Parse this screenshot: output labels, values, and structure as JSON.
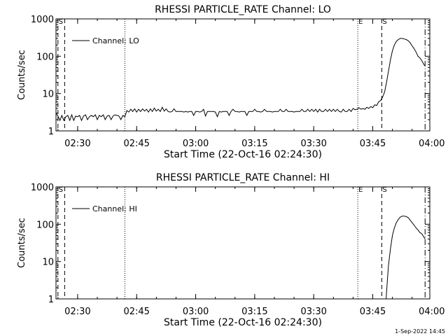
{
  "footer_timestamp": "1-Sep-2022 14:45",
  "chart_data": [
    {
      "type": "line",
      "title": "RHESSI PARTICLE_RATE Channel: LO",
      "xlabel": "Start Time (22-Oct-16 02:24:30)",
      "ylabel": "Counts/sec",
      "x_unit": "minutes after 02:24:30",
      "xlim": [
        0,
        95
      ],
      "ylim": [
        1,
        1000
      ],
      "yscale": "log",
      "x_ticks": [
        {
          "t": 5.5,
          "label": "02:30"
        },
        {
          "t": 20.5,
          "label": "02:45"
        },
        {
          "t": 35.5,
          "label": "03:00"
        },
        {
          "t": 50.5,
          "label": "03:15"
        },
        {
          "t": 65.5,
          "label": "03:30"
        },
        {
          "t": 80.5,
          "label": "03:45"
        },
        {
          "t": 95.5,
          "label": "04:00"
        }
      ],
      "y_ticks": [
        {
          "v": 1,
          "label": "1"
        },
        {
          "v": 10,
          "label": "10"
        },
        {
          "v": 100,
          "label": "100"
        },
        {
          "v": 1000,
          "label": "1000"
        }
      ],
      "legend": {
        "label": "Channel: LO",
        "position": "top-left"
      },
      "markers": [
        {
          "t": 0.5,
          "style": "dashed",
          "label": "S"
        },
        {
          "t": 2.2,
          "style": "dashed",
          "label": ""
        },
        {
          "t": 17.5,
          "style": "dotted",
          "label": ""
        },
        {
          "t": 76.7,
          "style": "dotted",
          "label": "E"
        },
        {
          "t": 82.8,
          "style": "dashed",
          "label": "S"
        },
        {
          "t": 93.8,
          "style": "dashdot",
          "label": ""
        }
      ],
      "series": [
        {
          "name": "Channel: LO",
          "points": [
            [
              0,
              3
            ],
            [
              0.5,
              2.5
            ],
            [
              1,
              1.9
            ],
            [
              1.5,
              2.6
            ],
            [
              2,
              1.9
            ],
            [
              2.5,
              2.4
            ],
            [
              3,
              2.6
            ],
            [
              3.5,
              1.9
            ],
            [
              4,
              2.7
            ],
            [
              4.5,
              1.9
            ],
            [
              5,
              2.5
            ],
            [
              5.5,
              2.4
            ],
            [
              6,
              2.6
            ],
            [
              6.5,
              1.9
            ],
            [
              7,
              2.5
            ],
            [
              7.5,
              2.7
            ],
            [
              8,
              2
            ],
            [
              8.5,
              2.4
            ],
            [
              9,
              2.6
            ],
            [
              9.5,
              2.4
            ],
            [
              10,
              2.7
            ],
            [
              10.5,
              2
            ],
            [
              11,
              2.6
            ],
            [
              11.5,
              2.4
            ],
            [
              12,
              2.7
            ],
            [
              12.5,
              2
            ],
            [
              13,
              2.5
            ],
            [
              13.5,
              2.6
            ],
            [
              14,
              2
            ],
            [
              14.5,
              2.5
            ],
            [
              15,
              2.7
            ],
            [
              15.5,
              2.6
            ],
            [
              16,
              2.5
            ],
            [
              16.5,
              2
            ],
            [
              17,
              2.6
            ],
            [
              17.5,
              2.4
            ],
            [
              18,
              3.5
            ],
            [
              18.5,
              3.2
            ],
            [
              19,
              3.8
            ],
            [
              19.5,
              3.3
            ],
            [
              20,
              3.9
            ],
            [
              20.5,
              3.2
            ],
            [
              21,
              3.8
            ],
            [
              21.5,
              3.3
            ],
            [
              22,
              3.9
            ],
            [
              22.5,
              3.4
            ],
            [
              23,
              3.8
            ],
            [
              23.5,
              3.2
            ],
            [
              24,
              3.9
            ],
            [
              24.5,
              3.3
            ],
            [
              25,
              4.1
            ],
            [
              25.5,
              3.4
            ],
            [
              26,
              3.8
            ],
            [
              26.5,
              3.3
            ],
            [
              27,
              4.3
            ],
            [
              27.5,
              3.4
            ],
            [
              28,
              3.9
            ],
            [
              28.5,
              3.3
            ],
            [
              29,
              3.2
            ],
            [
              29.5,
              3.3
            ],
            [
              30,
              3.9
            ],
            [
              30.5,
              3.3
            ],
            [
              31,
              3.3
            ],
            [
              31.5,
              3.3
            ],
            [
              32,
              3.3
            ],
            [
              32.5,
              3.2
            ],
            [
              33,
              3.3
            ],
            [
              33.5,
              3.2
            ],
            [
              34,
              3.3
            ],
            [
              34.5,
              3.3
            ],
            [
              35,
              2.6
            ],
            [
              35.5,
              3.3
            ],
            [
              36,
              3.3
            ],
            [
              36.5,
              3.2
            ],
            [
              37,
              3.3
            ],
            [
              37.5,
              3.8
            ],
            [
              38,
              2.5
            ],
            [
              38.5,
              3.3
            ],
            [
              39,
              3.3
            ],
            [
              39.5,
              3.3
            ],
            [
              40,
              3.3
            ],
            [
              40.5,
              3.2
            ],
            [
              41,
              2.4
            ],
            [
              41.5,
              3.3
            ],
            [
              42,
              3.2
            ],
            [
              42.5,
              3.3
            ],
            [
              43,
              3.3
            ],
            [
              43.5,
              3.3
            ],
            [
              44,
              2.6
            ],
            [
              44.5,
              3.3
            ],
            [
              45,
              3.8
            ],
            [
              45.5,
              3.3
            ],
            [
              46,
              3.3
            ],
            [
              46.5,
              3.2
            ],
            [
              47,
              3.3
            ],
            [
              47.5,
              3.3
            ],
            [
              48,
              3.3
            ],
            [
              48.5,
              2.6
            ],
            [
              49,
              3.3
            ],
            [
              49.5,
              3.3
            ],
            [
              50,
              3.3
            ],
            [
              50.5,
              3.8
            ],
            [
              51,
              3.3
            ],
            [
              51.5,
              3.3
            ],
            [
              52,
              3.2
            ],
            [
              52.5,
              3.3
            ],
            [
              53,
              3.8
            ],
            [
              53.5,
              3.3
            ],
            [
              54,
              3.3
            ],
            [
              54.5,
              3.3
            ],
            [
              55,
              3.2
            ],
            [
              55.5,
              3.3
            ],
            [
              56,
              3.3
            ],
            [
              56.5,
              3.3
            ],
            [
              57,
              3.8
            ],
            [
              57.5,
              3.3
            ],
            [
              58,
              3.3
            ],
            [
              58.5,
              3.8
            ],
            [
              59,
              3.3
            ],
            [
              59.5,
              3.3
            ],
            [
              60,
              3.3
            ],
            [
              60.5,
              3.2
            ],
            [
              61,
              3.3
            ],
            [
              61.5,
              3.3
            ],
            [
              62,
              3.3
            ],
            [
              62.5,
              3.8
            ],
            [
              63,
              3.3
            ],
            [
              63.5,
              3.3
            ],
            [
              64,
              3.8
            ],
            [
              64.5,
              3.3
            ],
            [
              65,
              3.8
            ],
            [
              65.5,
              3.3
            ],
            [
              66,
              3.8
            ],
            [
              66.5,
              3.2
            ],
            [
              67,
              3.8
            ],
            [
              67.5,
              3.3
            ],
            [
              68,
              3.3
            ],
            [
              68.5,
              3.8
            ],
            [
              69,
              3.3
            ],
            [
              69.5,
              3.8
            ],
            [
              70,
              3.3
            ],
            [
              70.5,
              3.8
            ],
            [
              71,
              3.3
            ],
            [
              71.5,
              3.8
            ],
            [
              72,
              3.3
            ],
            [
              72.5,
              3.2
            ],
            [
              73,
              3.8
            ],
            [
              73.5,
              3.3
            ],
            [
              74,
              3.3
            ],
            [
              74.5,
              3.8
            ],
            [
              75,
              3.3
            ],
            [
              75.5,
              4
            ],
            [
              76,
              3.7
            ],
            [
              76.5,
              3.8
            ],
            [
              77,
              4.2
            ],
            [
              77.5,
              3.8
            ],
            [
              78,
              4
            ],
            [
              78.5,
              3.8
            ],
            [
              79,
              4.3
            ],
            [
              79.5,
              4
            ],
            [
              80,
              4.5
            ],
            [
              80.5,
              4.2
            ],
            [
              81,
              5
            ],
            [
              81.5,
              4.8
            ],
            [
              82,
              6
            ],
            [
              82.5,
              6.5
            ],
            [
              83,
              8
            ],
            [
              83.5,
              11
            ],
            [
              84,
              20
            ],
            [
              84.5,
              40
            ],
            [
              85,
              80
            ],
            [
              85.5,
              140
            ],
            [
              86,
              200
            ],
            [
              86.5,
              250
            ],
            [
              87,
              280
            ],
            [
              87.5,
              300
            ],
            [
              88,
              300
            ],
            [
              88.5,
              290
            ],
            [
              89,
              280
            ],
            [
              89.5,
              260
            ],
            [
              90,
              230
            ],
            [
              90.5,
              190
            ],
            [
              91,
              160
            ],
            [
              91.5,
              130
            ],
            [
              92,
              100
            ],
            [
              92.5,
              90
            ],
            [
              93,
              75
            ],
            [
              93.5,
              60
            ],
            [
              93.8,
              55
            ]
          ]
        }
      ]
    },
    {
      "type": "line",
      "title": "RHESSI PARTICLE_RATE Channel: HI",
      "xlabel": "Start Time (22-Oct-16 02:24:30)",
      "ylabel": "Counts/sec",
      "x_unit": "minutes after 02:24:30",
      "xlim": [
        0,
        95
      ],
      "ylim": [
        1,
        1000
      ],
      "yscale": "log",
      "x_ticks": [
        {
          "t": 5.5,
          "label": "02:30"
        },
        {
          "t": 20.5,
          "label": "02:45"
        },
        {
          "t": 35.5,
          "label": "03:00"
        },
        {
          "t": 50.5,
          "label": "03:15"
        },
        {
          "t": 65.5,
          "label": "03:30"
        },
        {
          "t": 80.5,
          "label": "03:45"
        },
        {
          "t": 95.5,
          "label": "04:00"
        }
      ],
      "y_ticks": [
        {
          "v": 1,
          "label": "1"
        },
        {
          "v": 10,
          "label": "10"
        },
        {
          "v": 100,
          "label": "100"
        },
        {
          "v": 1000,
          "label": "1000"
        }
      ],
      "legend": {
        "label": "Channel: HI",
        "position": "top-left"
      },
      "markers": [
        {
          "t": 0.5,
          "style": "dashed",
          "label": "S"
        },
        {
          "t": 2.2,
          "style": "dashed",
          "label": ""
        },
        {
          "t": 17.5,
          "style": "dotted",
          "label": ""
        },
        {
          "t": 76.7,
          "style": "dotted",
          "label": "E"
        },
        {
          "t": 82.8,
          "style": "dashed",
          "label": "S"
        },
        {
          "t": 93.8,
          "style": "dashdot",
          "label": ""
        }
      ],
      "series": [
        {
          "name": "Channel: HI",
          "points": [
            [
              83.9,
              1
            ],
            [
              84.2,
              3
            ],
            [
              84.5,
              8
            ],
            [
              85,
              22
            ],
            [
              85.5,
              50
            ],
            [
              86,
              80
            ],
            [
              86.5,
              110
            ],
            [
              87,
              135
            ],
            [
              87.5,
              155
            ],
            [
              88,
              165
            ],
            [
              88.5,
              165
            ],
            [
              89,
              160
            ],
            [
              89.5,
              150
            ],
            [
              90,
              130
            ],
            [
              90.5,
              110
            ],
            [
              91,
              95
            ],
            [
              91.5,
              80
            ],
            [
              92,
              70
            ],
            [
              92.5,
              60
            ],
            [
              93,
              55
            ],
            [
              93.5,
              45
            ],
            [
              93.8,
              40
            ]
          ]
        }
      ]
    }
  ]
}
